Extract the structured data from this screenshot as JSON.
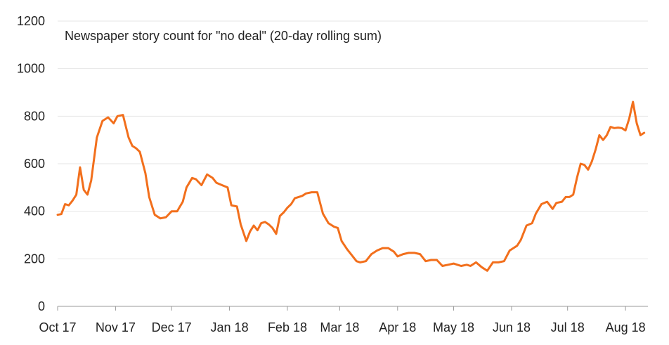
{
  "chart_data": {
    "type": "line",
    "title": "Newspaper story count for \"no deal\" (20-day rolling sum)",
    "xlabel": "",
    "ylabel": "",
    "ylim": [
      0,
      1200
    ],
    "yticks": [
      0,
      200,
      400,
      600,
      800,
      1000,
      1200
    ],
    "grid": "horizontal",
    "legend": "none",
    "color": "#f26f1c",
    "x_tick_labels": [
      "Oct 17",
      "Nov 17",
      "Dec 17",
      "Jan 18",
      "Feb 18",
      "Mar 18",
      "Apr 18",
      "May 18",
      "Jun 18",
      "Jul 18",
      "Aug 18"
    ],
    "series": [
      {
        "x": [
          "2017-10-01",
          "2017-10-03",
          "2017-10-05",
          "2017-10-07",
          "2017-10-09",
          "2017-10-11",
          "2017-10-13",
          "2017-10-15",
          "2017-10-17",
          "2017-10-19",
          "2017-10-22",
          "2017-10-25",
          "2017-10-28",
          "2017-10-31",
          "2017-11-02",
          "2017-11-05",
          "2017-11-08",
          "2017-11-10",
          "2017-11-12",
          "2017-11-14",
          "2017-11-17",
          "2017-11-19",
          "2017-11-22",
          "2017-11-25",
          "2017-11-28",
          "2017-12-01",
          "2017-12-04",
          "2017-12-07",
          "2017-12-09",
          "2017-12-12",
          "2017-12-14",
          "2017-12-17",
          "2017-12-20",
          "2017-12-23",
          "2017-12-25",
          "2017-12-28",
          "2017-12-31",
          "2018-01-02",
          "2018-01-05",
          "2018-01-07",
          "2018-01-10",
          "2018-01-12",
          "2018-01-14",
          "2018-01-16",
          "2018-01-18",
          "2018-01-20",
          "2018-01-22",
          "2018-01-24",
          "2018-01-26",
          "2018-01-28",
          "2018-01-30",
          "2018-02-01",
          "2018-02-03",
          "2018-02-05",
          "2018-02-07",
          "2018-02-09",
          "2018-02-11",
          "2018-02-14",
          "2018-02-17",
          "2018-02-20",
          "2018-02-23",
          "2018-02-26",
          "2018-02-28",
          "2018-03-02",
          "2018-03-05",
          "2018-03-08",
          "2018-03-10",
          "2018-03-12",
          "2018-03-15",
          "2018-03-18",
          "2018-03-21",
          "2018-03-24",
          "2018-03-27",
          "2018-03-30",
          "2018-04-01",
          "2018-04-04",
          "2018-04-07",
          "2018-04-10",
          "2018-04-13",
          "2018-04-16",
          "2018-04-19",
          "2018-04-22",
          "2018-04-25",
          "2018-04-28",
          "2018-05-01",
          "2018-05-03",
          "2018-05-05",
          "2018-05-08",
          "2018-05-10",
          "2018-05-13",
          "2018-05-16",
          "2018-05-19",
          "2018-05-22",
          "2018-05-25",
          "2018-05-28",
          "2018-05-31",
          "2018-06-02",
          "2018-06-04",
          "2018-06-06",
          "2018-06-09",
          "2018-06-12",
          "2018-06-14",
          "2018-06-17",
          "2018-06-20",
          "2018-06-23",
          "2018-06-25",
          "2018-06-28",
          "2018-06-30",
          "2018-07-02",
          "2018-07-04",
          "2018-07-06",
          "2018-07-08",
          "2018-07-10",
          "2018-07-12",
          "2018-07-14",
          "2018-07-16",
          "2018-07-18",
          "2018-07-20",
          "2018-07-22",
          "2018-07-24",
          "2018-07-26",
          "2018-07-28",
          "2018-07-30",
          "2018-08-01",
          "2018-08-03",
          "2018-08-05",
          "2018-08-07",
          "2018-08-09",
          "2018-08-11"
        ],
        "values": [
          385,
          388,
          430,
          425,
          445,
          470,
          585,
          490,
          470,
          530,
          710,
          780,
          795,
          770,
          800,
          805,
          710,
          675,
          665,
          650,
          560,
          460,
          385,
          370,
          375,
          400,
          400,
          440,
          500,
          540,
          535,
          510,
          555,
          540,
          520,
          510,
          500,
          425,
          420,
          345,
          275,
          315,
          340,
          320,
          350,
          355,
          345,
          330,
          305,
          380,
          395,
          415,
          430,
          455,
          460,
          465,
          475,
          480,
          480,
          390,
          350,
          335,
          330,
          275,
          240,
          210,
          190,
          185,
          190,
          220,
          235,
          245,
          245,
          230,
          210,
          220,
          225,
          225,
          220,
          190,
          195,
          195,
          170,
          175,
          180,
          175,
          170,
          175,
          170,
          185,
          165,
          150,
          185,
          185,
          190,
          235,
          245,
          255,
          280,
          340,
          350,
          390,
          430,
          440,
          410,
          435,
          440,
          460,
          460,
          470,
          540,
          600,
          595,
          575,
          610,
          660,
          720,
          700,
          720,
          755,
          750,
          752,
          750,
          740,
          790,
          860,
          770,
          720,
          730
        ]
      }
    ]
  }
}
